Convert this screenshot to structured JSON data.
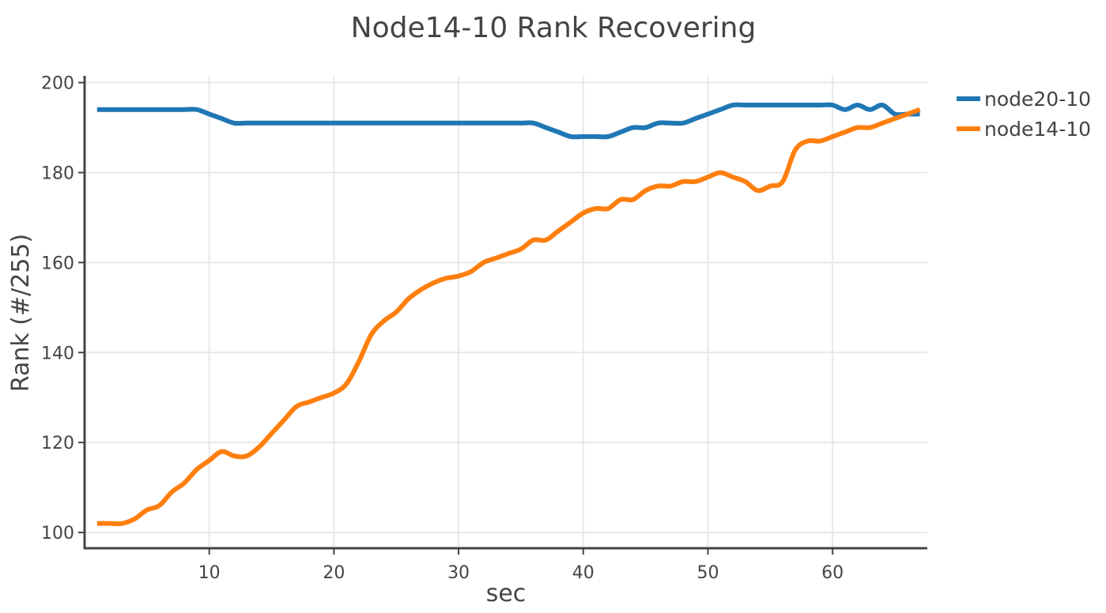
{
  "chart_data": {
    "type": "line",
    "title": "Node14-10 Rank Recovering",
    "xlabel": "sec",
    "ylabel": "Rank (#/255)",
    "xlim": [
      0,
      67.6
    ],
    "ylim": [
      96.5,
      201.5
    ],
    "x_ticks": [
      10,
      20,
      30,
      40,
      50,
      60
    ],
    "y_ticks": [
      100,
      120,
      140,
      160,
      180,
      200
    ],
    "grid": true,
    "legend_position": "top-right",
    "series": [
      {
        "name": "node20-10",
        "color": "#1f77b4",
        "x": [
          1,
          2,
          3,
          4,
          5,
          6,
          7,
          8,
          9,
          10,
          11,
          12,
          13,
          14,
          15,
          16,
          17,
          18,
          19,
          20,
          21,
          22,
          23,
          24,
          25,
          26,
          27,
          28,
          29,
          30,
          31,
          32,
          33,
          34,
          35,
          36,
          37,
          38,
          39,
          40,
          41,
          42,
          43,
          44,
          45,
          46,
          47,
          48,
          49,
          50,
          51,
          52,
          53,
          54,
          55,
          56,
          57,
          58,
          59,
          60,
          61,
          62,
          63,
          64,
          65,
          66,
          67
        ],
        "y": [
          194,
          194,
          194,
          194,
          194,
          194,
          194,
          194,
          194,
          193,
          192,
          191,
          191,
          191,
          191,
          191,
          191,
          191,
          191,
          191,
          191,
          191,
          191,
          191,
          191,
          191,
          191,
          191,
          191,
          191,
          191,
          191,
          191,
          191,
          191,
          191,
          190,
          189,
          188,
          188,
          188,
          188,
          189,
          190,
          190,
          191,
          191,
          191,
          192,
          193,
          194,
          195,
          195,
          195,
          195,
          195,
          195,
          195,
          195,
          195,
          194,
          195,
          194,
          195,
          193,
          193,
          193
        ]
      },
      {
        "name": "node14-10",
        "color": "#ff7f0e",
        "x": [
          1,
          2,
          3,
          4,
          5,
          6,
          7,
          8,
          9,
          10,
          11,
          12,
          13,
          14,
          15,
          16,
          17,
          18,
          19,
          20,
          21,
          22,
          23,
          24,
          25,
          26,
          27,
          28,
          29,
          30,
          31,
          32,
          33,
          34,
          35,
          36,
          37,
          38,
          39,
          40,
          41,
          42,
          43,
          44,
          45,
          46,
          47,
          48,
          49,
          50,
          51,
          52,
          53,
          54,
          55,
          56,
          57,
          58,
          59,
          60,
          61,
          62,
          63,
          64,
          65,
          66,
          67
        ],
        "y": [
          102,
          102,
          102,
          103,
          105,
          106,
          109,
          111,
          114,
          116,
          118,
          117,
          117,
          119,
          122,
          125,
          128,
          129,
          130,
          131,
          133,
          138,
          144,
          147,
          149,
          152,
          154,
          155.5,
          156.5,
          157,
          158,
          160,
          161,
          162,
          163,
          165,
          165,
          167,
          169,
          171,
          172,
          172,
          174,
          174,
          176,
          177,
          177,
          178,
          178,
          179,
          180,
          179,
          178,
          176,
          177,
          178,
          185,
          187,
          187,
          188,
          189,
          190,
          190,
          191,
          192,
          193,
          194
        ]
      }
    ]
  }
}
